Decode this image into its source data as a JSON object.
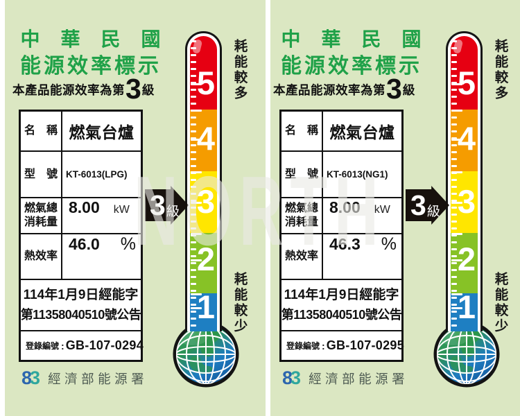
{
  "page": {
    "background_color": "#dbe7c2",
    "watermark": "NORTH"
  },
  "shared": {
    "title_color": "#1fa148",
    "title_line1": "中　華　民　國",
    "title_line2": "能源效率標示",
    "rating_prefix": "本產品能源效率為第",
    "rating_grade": "3",
    "rating_suffix": "級",
    "table": {
      "name_label": "名　稱",
      "model_label": "型　號",
      "consumption_label_line1": "燃氣總",
      "consumption_label_line2": "消耗量",
      "efficiency_label": "熱效率",
      "announcement_line1": "114年1月9日經能字",
      "announcement_line2": "第11358040510號公告",
      "registration_label": "登錄編號",
      "registration_separator": ":"
    },
    "thermometer": {
      "level_labels": [
        "5",
        "4",
        "3",
        "2",
        "1"
      ],
      "level_colors": [
        "#e60012",
        "#f59c00",
        "#ffe600",
        "#87c226",
        "#1e7fc2"
      ],
      "caption_top": "耗能較多",
      "caption_bottom": "耗能較少",
      "pointer_grade": "3",
      "pointer_suffix": "級"
    },
    "agency_mark_left": "8",
    "agency_mark_right": "3",
    "agency_name": "經濟部能源署"
  },
  "labels": [
    {
      "product_name": "燃氣台爐",
      "model": "KT-6013(LPG)",
      "consumption_value": "8.00",
      "consumption_unit": "kW",
      "efficiency_value": "46.0",
      "efficiency_unit": "%",
      "registration_number": "GB-107-0294"
    },
    {
      "product_name": "燃氣台爐",
      "model": "KT-6013(NG1)",
      "consumption_value": "8.00",
      "consumption_unit": "kW",
      "efficiency_value": "46.3",
      "efficiency_unit": "%",
      "registration_number": "GB-107-0295"
    }
  ]
}
